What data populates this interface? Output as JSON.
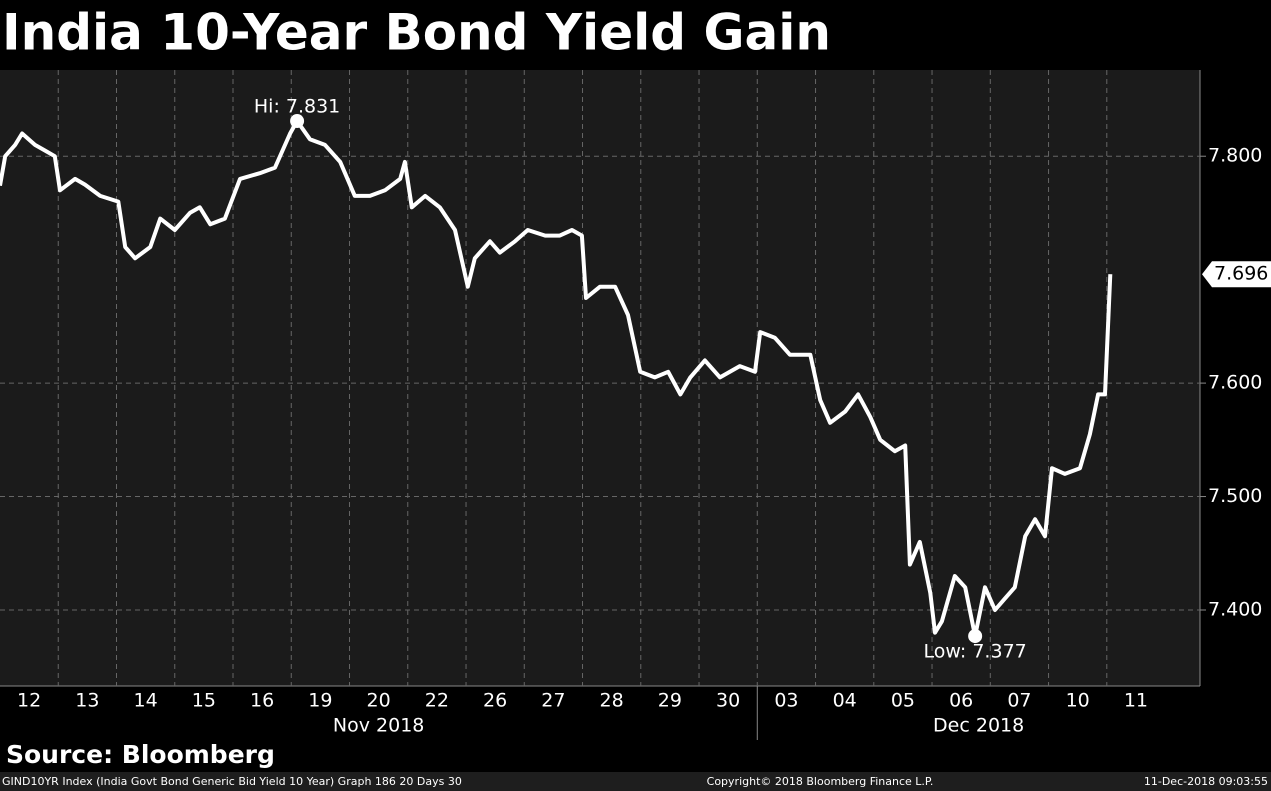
{
  "chart_data": {
    "type": "line",
    "title": "India 10-Year Bond Yield Gain",
    "source": "Source: Bloomberg",
    "footer": [
      "GIND10YR Index (India Govt Bond Generic Bid Yield 10 Year) Graph 186 20 Days 30",
      "Copyright© 2018 Bloomberg Finance L.P.",
      "11-Dec-2018 09:03:55"
    ],
    "annotations": [
      "Hi: 7.831",
      "Low: 7.377"
    ],
    "last_value_label": "7.696",
    "months": [
      "Nov 2018",
      "Dec 2018"
    ],
    "color": "#ffffff",
    "grid": true,
    "xlim": [
      0,
      20.6
    ],
    "ylim": [
      7.333,
      7.876
    ],
    "xticks": [
      {
        "value": 0.5,
        "label": "12"
      },
      {
        "value": 1.5,
        "label": "13"
      },
      {
        "value": 2.5,
        "label": "14"
      },
      {
        "value": 3.5,
        "label": "15"
      },
      {
        "value": 4.5,
        "label": "16"
      },
      {
        "value": 5.5,
        "label": "19"
      },
      {
        "value": 6.5,
        "label": "20"
      },
      {
        "value": 7.5,
        "label": "22"
      },
      {
        "value": 8.5,
        "label": "26"
      },
      {
        "value": 9.5,
        "label": "27"
      },
      {
        "value": 10.5,
        "label": "28"
      },
      {
        "value": 11.5,
        "label": "29"
      },
      {
        "value": 12.5,
        "label": "30"
      },
      {
        "value": 13.5,
        "label": "03"
      },
      {
        "value": 14.5,
        "label": "04"
      },
      {
        "value": 15.5,
        "label": "05"
      },
      {
        "value": 16.5,
        "label": "06"
      },
      {
        "value": 17.5,
        "label": "07"
      },
      {
        "value": 18.5,
        "label": "10"
      },
      {
        "value": 19.5,
        "label": "11"
      }
    ],
    "yticks": [
      {
        "value": 7.4,
        "label": "7.400"
      },
      {
        "value": 7.5,
        "label": "7.500"
      },
      {
        "value": 7.6,
        "label": "7.600"
      },
      {
        "value": 7.8,
        "label": "7.800"
      }
    ],
    "x": [
      0,
      0.09,
      0.26,
      0.38,
      0.6,
      0.77,
      0.94,
      1.03,
      1.29,
      1.46,
      1.72,
      2.03,
      2.15,
      2.32,
      2.58,
      2.75,
      3.0,
      3.26,
      3.43,
      3.61,
      3.86,
      4.12,
      4.46,
      4.72,
      4.98,
      5.1,
      5.32,
      5.58,
      5.84,
      6.09,
      6.35,
      6.61,
      6.87,
      6.95,
      7.07,
      7.3,
      7.55,
      7.81,
      8.03,
      8.15,
      8.41,
      8.58,
      8.84,
      9.06,
      9.36,
      9.61,
      9.82,
      9.99,
      10.06,
      10.3,
      10.56,
      10.78,
      10.99,
      11.24,
      11.47,
      11.68,
      11.85,
      12.1,
      12.36,
      12.7,
      12.96,
      13.05,
      13.3,
      13.56,
      13.91,
      14.08,
      14.25,
      14.51,
      14.73,
      14.94,
      15.11,
      15.36,
      15.54,
      15.62,
      15.79,
      15.97,
      16.05,
      16.17,
      16.39,
      16.57,
      16.74,
      16.91,
      17.08,
      17.25,
      17.42,
      17.6,
      17.77,
      17.94,
      18.06,
      18.28,
      18.54,
      18.71,
      18.85,
      18.97,
      19.06
    ],
    "values": [
      7.774,
      7.8,
      7.81,
      7.82,
      7.81,
      7.805,
      7.8,
      7.77,
      7.78,
      7.775,
      7.765,
      7.76,
      7.72,
      7.71,
      7.72,
      7.745,
      7.735,
      7.75,
      7.755,
      7.74,
      7.745,
      7.78,
      7.785,
      7.79,
      7.82,
      7.831,
      7.815,
      7.81,
      7.795,
      7.765,
      7.765,
      7.77,
      7.78,
      7.795,
      7.755,
      7.765,
      7.755,
      7.735,
      7.685,
      7.71,
      7.725,
      7.715,
      7.725,
      7.735,
      7.73,
      7.73,
      7.735,
      7.73,
      7.675,
      7.685,
      7.685,
      7.66,
      7.61,
      7.605,
      7.61,
      7.59,
      7.605,
      7.62,
      7.605,
      7.615,
      7.61,
      7.645,
      7.64,
      7.625,
      7.625,
      7.585,
      7.565,
      7.575,
      7.59,
      7.57,
      7.55,
      7.54,
      7.545,
      7.44,
      7.46,
      7.415,
      7.38,
      7.39,
      7.43,
      7.42,
      7.377,
      7.42,
      7.4,
      7.41,
      7.42,
      7.465,
      7.48,
      7.465,
      7.525,
      7.52,
      7.525,
      7.555,
      7.59,
      7.59,
      7.696
    ]
  }
}
